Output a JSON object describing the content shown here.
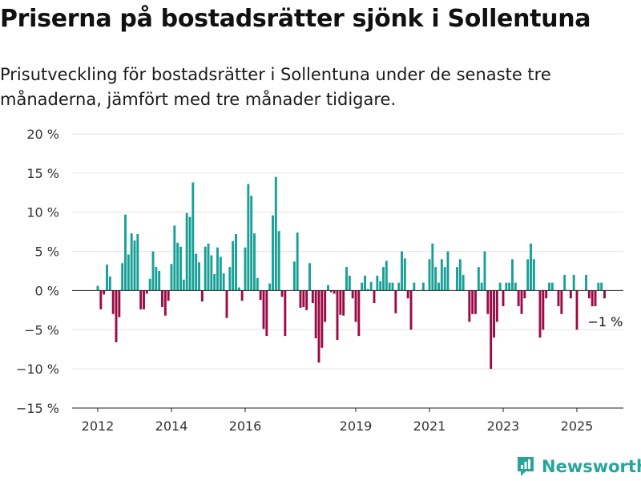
{
  "title": "Priserna på bostadsrätter sjönk i Sollentuna",
  "subtitle": "Prisutveckling för bostadsrätter i Sollentuna under de senaste tre månaderna, jämfört med tre månader tidigare.",
  "brand": {
    "name": "Newsworthy"
  },
  "colors": {
    "positive": "#17A096",
    "negative": "#9C0A45",
    "brand": "#26A69A"
  },
  "chart_data": {
    "type": "bar",
    "title": "Priserna på bostadsrätter sjönk i Sollentuna",
    "subtitle": "Prisutveckling för bostadsrätter i Sollentuna under de senaste tre månaderna, jämfört med tre månader tidigare.",
    "unit": "%",
    "ylim": [
      -15,
      20
    ],
    "yticks": [
      20,
      15,
      10,
      5,
      0,
      -5,
      -10,
      -15
    ],
    "ytick_labels": [
      "20 %",
      "15 %",
      "10 %",
      "5 %",
      "0 %",
      "−5 %",
      "−10 %",
      "−15 %"
    ],
    "xticks": [
      {
        "year": 2012,
        "label": "2012"
      },
      {
        "year": 2014,
        "label": "2014"
      },
      {
        "year": 2016,
        "label": "2016"
      },
      {
        "year": 2019,
        "label": "2019"
      },
      {
        "year": 2021,
        "label": "2021"
      },
      {
        "year": 2023,
        "label": "2023"
      },
      {
        "year": 2025,
        "label": "2025"
      }
    ],
    "grid": true,
    "start": "2012-01",
    "frequency": "monthly",
    "values": [
      0.6,
      -2.4,
      -0.5,
      3.3,
      1.8,
      -3.0,
      -6.6,
      -3.4,
      3.5,
      9.7,
      4.6,
      7.3,
      6.4,
      7.2,
      -2.4,
      -2.4,
      -0.4,
      1.5,
      5.0,
      3.0,
      2.5,
      -2.1,
      -3.2,
      -1.3,
      3.4,
      8.3,
      6.1,
      5.6,
      1.4,
      9.9,
      9.4,
      13.8,
      4.7,
      3.6,
      -1.4,
      5.6,
      6.0,
      4.5,
      2.1,
      5.5,
      4.3,
      2.2,
      -3.5,
      3.0,
      6.3,
      7.2,
      0.4,
      -1.3,
      5.5,
      13.6,
      12.1,
      7.3,
      1.6,
      -1.2,
      -4.9,
      -5.8,
      0.9,
      9.6,
      14.5,
      7.6,
      -0.8,
      -5.8,
      0,
      0,
      3.7,
      7.4,
      -2.2,
      -2.1,
      -2.5,
      3.5,
      -1.6,
      -6.1,
      -9.2,
      -7.3,
      -4.0,
      0.7,
      -0.2,
      -0.4,
      -6.3,
      -3.1,
      -3.2,
      3.0,
      1.9,
      -1.0,
      -4.0,
      -5.8,
      1.0,
      1.9,
      0.2,
      1.1,
      -1.6,
      1.9,
      1.2,
      3.0,
      3.8,
      1.0,
      1.0,
      -2.9,
      1.0,
      5.0,
      4.1,
      -1.0,
      -5.0,
      1.0,
      0,
      0,
      1.0,
      0,
      4.0,
      6.0,
      3.0,
      1.0,
      4.0,
      3.0,
      5.0,
      0,
      0,
      3.0,
      4.0,
      2.0,
      0,
      -4.0,
      -3.0,
      -3.0,
      3.0,
      1.0,
      5.0,
      -3.0,
      -10.0,
      -6.0,
      -4.0,
      1.0,
      -2.0,
      1.0,
      1.0,
      4.0,
      1.0,
      -2.0,
      -3.0,
      -1.0,
      4.0,
      6.0,
      4.0,
      0,
      -6.0,
      -5.0,
      -1.0,
      1.0,
      1.0,
      0,
      -2.0,
      -3.0,
      2.0,
      0,
      -1.0,
      2.0,
      -5.0,
      0,
      0,
      2.0,
      -1.0,
      -2.0,
      -2.0,
      1.0,
      1.0,
      -1.0
    ],
    "end_label": "−1 %"
  }
}
